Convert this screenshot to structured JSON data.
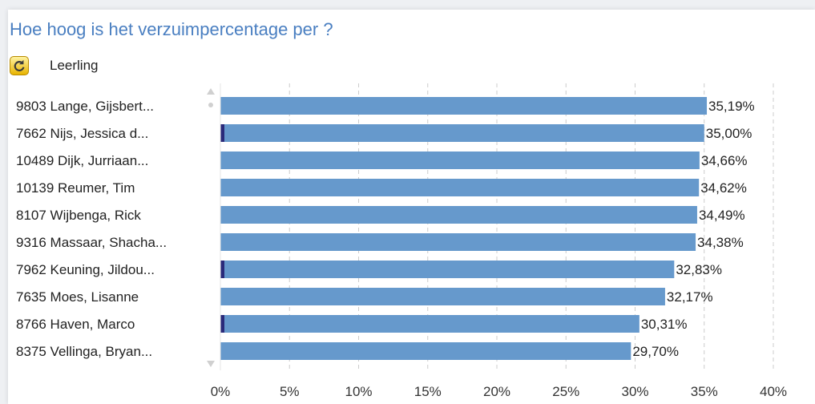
{
  "header": {
    "title": "Hoe hoog is het verzuimpercentage per ?",
    "dimension_label": "Leerling",
    "icon": "refresh-icon"
  },
  "colors": {
    "bar": "#6699cc",
    "marker": "#2a2a7a",
    "title": "#4a7fc1",
    "grid": "#cccccc"
  },
  "chart_data": {
    "type": "bar",
    "orientation": "horizontal",
    "title": "Hoe hoog is het verzuimpercentage per ?",
    "xlabel": "",
    "ylabel": "",
    "categories": [
      "9803 Lange, Gijsbert...",
      "7662 Nijs, Jessica d...",
      "10489 Dijk, Jurriaan...",
      "10139 Reumer, Tim",
      "8107 Wijbenga, Rick",
      "9316 Massaar, Shacha...",
      "7962 Keuning, Jildou...",
      "7635 Moes, Lisanne",
      "8766 Haven, Marco",
      "8375 Vellinga, Bryan..."
    ],
    "values": [
      35.19,
      35.0,
      34.66,
      34.62,
      34.49,
      34.38,
      32.83,
      32.17,
      30.31,
      29.7
    ],
    "value_labels": [
      "35,19%",
      "35,00%",
      "34,66%",
      "34,62%",
      "34,49%",
      "34,38%",
      "32,83%",
      "32,17%",
      "30,31%",
      "29,70%"
    ],
    "highlighted": [
      false,
      true,
      false,
      false,
      false,
      false,
      true,
      false,
      true,
      false
    ],
    "xlim": [
      0,
      40
    ],
    "x_ticks": [
      0,
      5,
      10,
      15,
      20,
      25,
      30,
      35,
      40
    ],
    "x_tick_labels": [
      "0%",
      "5%",
      "10%",
      "15%",
      "20%",
      "25%",
      "30%",
      "35%",
      "40%"
    ],
    "grid": "vertical dashed"
  }
}
